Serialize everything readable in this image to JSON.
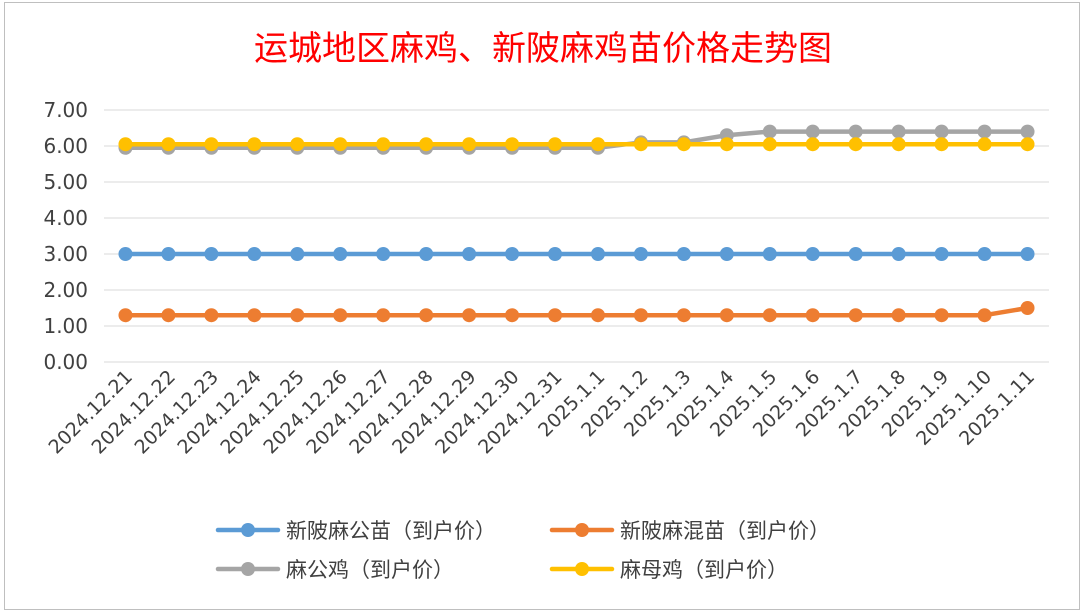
{
  "chart_data": {
    "type": "line",
    "title": "运城地区麻鸡、新陂麻鸡苗价格走势图",
    "xlabel": "",
    "ylabel": "",
    "ylim": [
      0,
      7
    ],
    "y_ticks": [
      "0.00",
      "1.00",
      "2.00",
      "3.00",
      "4.00",
      "5.00",
      "6.00",
      "7.00"
    ],
    "grid": "horizontal",
    "legend_position": "bottom",
    "categories": [
      "2024.12.21",
      "2024.12.22",
      "2024.12.23",
      "2024.12.24",
      "2024.12.25",
      "2024.12.26",
      "2024.12.27",
      "2024.12.28",
      "2024.12.29",
      "2024.12.30",
      "2024.12.31",
      "2025.1.1",
      "2025.1.2",
      "2025.1.3",
      "2025.1.4",
      "2025.1.5",
      "2025.1.6",
      "2025.1.7",
      "2025.1.8",
      "2025.1.9",
      "2025.1.10",
      "2025.1.11"
    ],
    "series": [
      {
        "name": "新陂麻公苗（到户价）",
        "color": "#5b9bd5",
        "values": [
          3,
          3,
          3,
          3,
          3,
          3,
          3,
          3,
          3,
          3,
          3,
          3,
          3,
          3,
          3,
          3,
          3,
          3,
          3,
          3,
          3,
          3
        ]
      },
      {
        "name": "新陂麻混苗（到户价）",
        "color": "#ed7d31",
        "values": [
          1.3,
          1.3,
          1.3,
          1.3,
          1.3,
          1.3,
          1.3,
          1.3,
          1.3,
          1.3,
          1.3,
          1.3,
          1.3,
          1.3,
          1.3,
          1.3,
          1.3,
          1.3,
          1.3,
          1.3,
          1.3,
          1.5
        ]
      },
      {
        "name": "麻公鸡（到户价）",
        "color": "#a5a5a5",
        "values": [
          5.95,
          5.95,
          5.95,
          5.95,
          5.95,
          5.95,
          5.95,
          5.95,
          5.95,
          5.95,
          5.95,
          5.95,
          6.1,
          6.1,
          6.3,
          6.4,
          6.4,
          6.4,
          6.4,
          6.4,
          6.4,
          6.4
        ]
      },
      {
        "name": "麻母鸡（到户价）",
        "color": "#ffc000",
        "values": [
          6.05,
          6.05,
          6.05,
          6.05,
          6.05,
          6.05,
          6.05,
          6.05,
          6.05,
          6.05,
          6.05,
          6.05,
          6.05,
          6.05,
          6.05,
          6.05,
          6.05,
          6.05,
          6.05,
          6.05,
          6.05,
          6.05
        ]
      }
    ]
  }
}
